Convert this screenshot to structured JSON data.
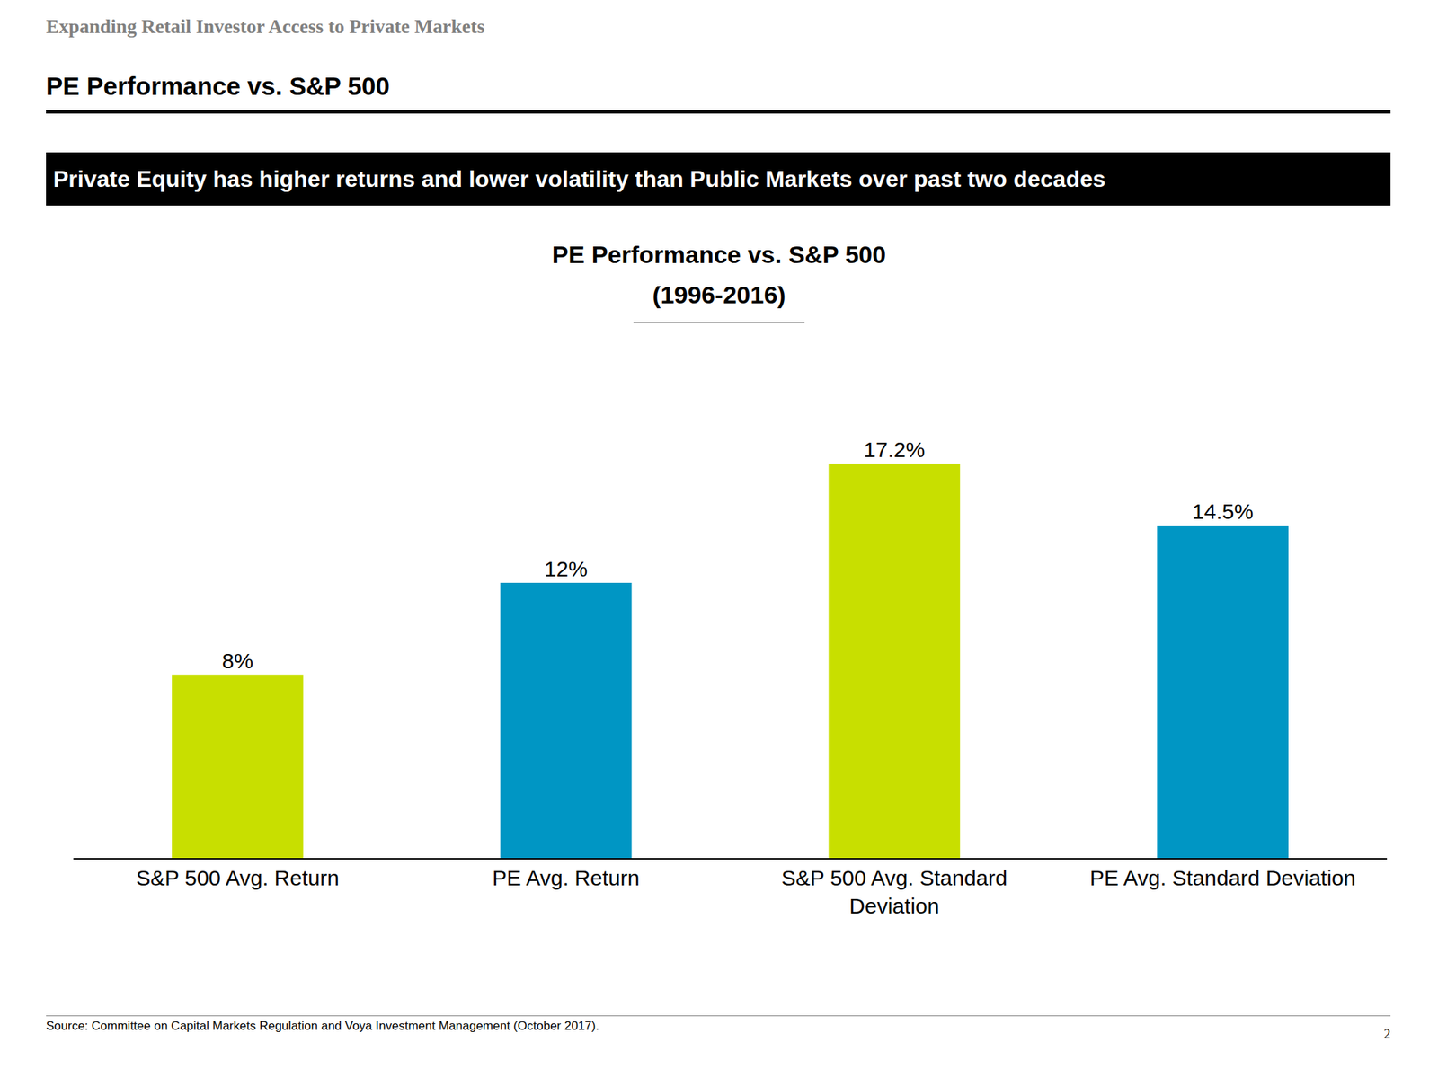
{
  "header": "Expanding Retail Investor Access to Private Markets",
  "heading": "PE Performance vs. S&P 500",
  "banner": "Private Equity has higher returns and lower volatility than Public Markets over past two decades",
  "chart_data": {
    "type": "bar",
    "title": "PE Performance vs. S&P 500",
    "subtitle": "(1996-2016)",
    "categories": [
      "S&P 500 Avg. Return",
      "PE Avg. Return",
      "S&P 500 Avg. Standard Deviation",
      "PE Avg. Standard Deviation"
    ],
    "values": [
      8,
      12,
      17.2,
      14.5
    ],
    "value_labels": [
      "8%",
      "12%",
      "17.2%",
      "14.5%"
    ],
    "colors": [
      "#c8df00",
      "#0096c4",
      "#c8df00",
      "#0096c4"
    ],
    "ylim": [
      0,
      23.5
    ],
    "yticks": [],
    "grid": false,
    "data_labels": true,
    "tick_labels": "x"
  },
  "source": "Source: Committee on Capital Markets Regulation and Voya Investment Management (October 2017).",
  "page_number": "2"
}
